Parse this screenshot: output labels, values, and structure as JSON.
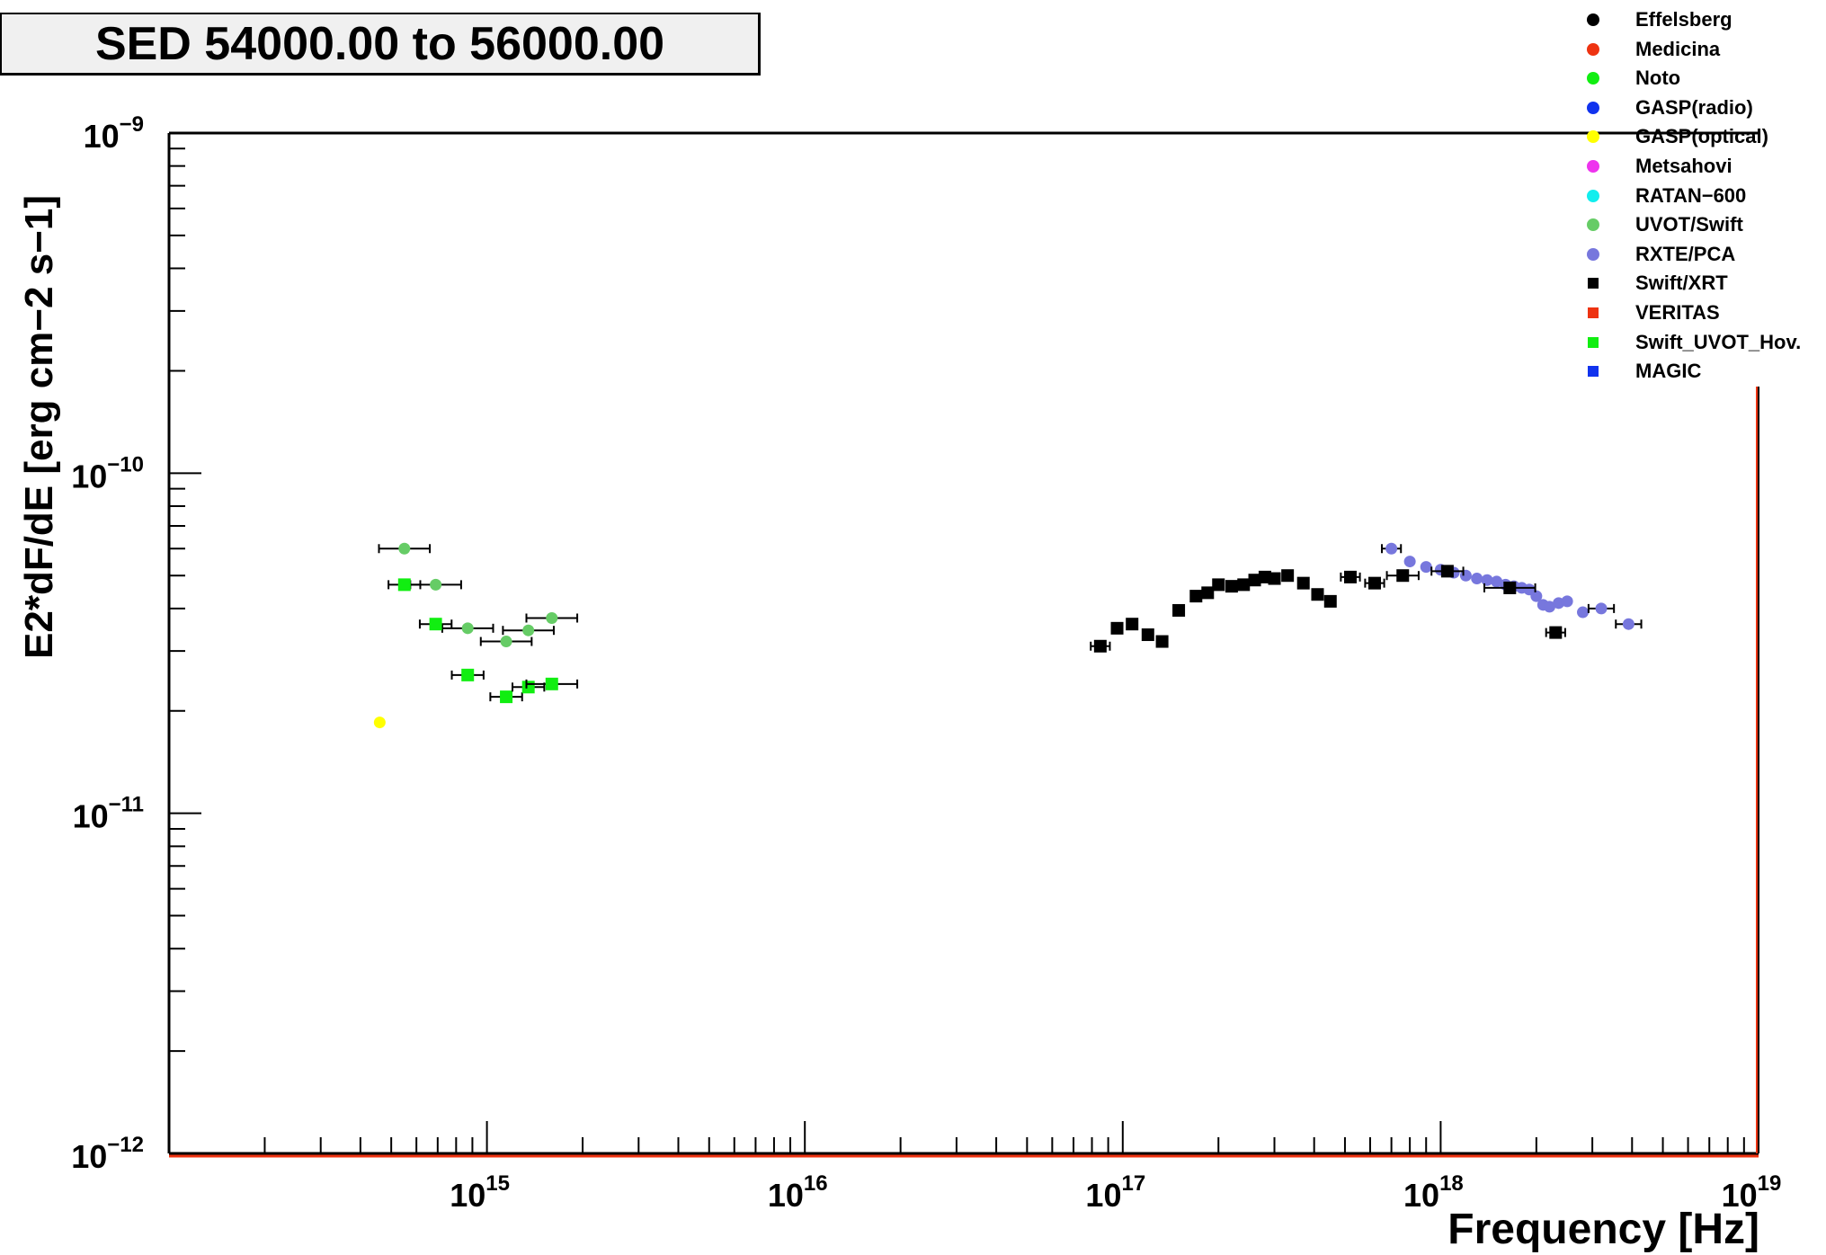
{
  "title": "SED 54000.00 to 56000.00",
  "chart_data": {
    "type": "scatter",
    "title": "SED 54000.00 to 56000.00",
    "xlabel": "Frequency [Hz]",
    "ylabel": "E2*dF/dE [erg cm−2 s−1]",
    "x_scale": "log",
    "y_scale": "log",
    "xlim": [
      100000000000000.0,
      1e+19
    ],
    "ylim": [
      1e-12,
      1e-09
    ],
    "grid": false,
    "legend_position": "top-right",
    "x_ticks": [
      {
        "value": 1000000000000000.0,
        "base": "10",
        "exp": "15"
      },
      {
        "value": 1e+16,
        "base": "10",
        "exp": "16"
      },
      {
        "value": 1e+17,
        "base": "10",
        "exp": "17"
      },
      {
        "value": 1e+18,
        "base": "10",
        "exp": "18"
      },
      {
        "value": 1e+19,
        "base": "10",
        "exp": "19"
      }
    ],
    "y_ticks": [
      {
        "value": 1e-09,
        "base": "10",
        "exp": "−9"
      },
      {
        "value": 1e-10,
        "base": "10",
        "exp": "−10"
      },
      {
        "value": 1e-11,
        "base": "10",
        "exp": "−11"
      },
      {
        "value": 1e-12,
        "base": "10",
        "exp": "−12"
      }
    ],
    "series": [
      {
        "name": "Effelsberg",
        "marker": "circle",
        "color": "#000000",
        "points": []
      },
      {
        "name": "Medicina",
        "marker": "circle",
        "color": "#ee3311",
        "points": []
      },
      {
        "name": "Noto",
        "marker": "circle",
        "color": "#11ee11",
        "points": []
      },
      {
        "name": "GASP(radio)",
        "marker": "circle",
        "color": "#1133ee",
        "points": []
      },
      {
        "name": "GASP(optical)",
        "marker": "circle",
        "color": "#ffff00",
        "points": [
          {
            "x": 460000000000000.0,
            "y": 1.85e-11
          }
        ]
      },
      {
        "name": "Metsahovi",
        "marker": "circle",
        "color": "#ee33ee",
        "points": []
      },
      {
        "name": "RATAN−600",
        "marker": "circle",
        "color": "#11eeee",
        "points": []
      },
      {
        "name": "UVOT/Swift",
        "marker": "circle",
        "color": "#66cc66",
        "points": [
          {
            "x": 550000000000000.0,
            "y": 6e-11,
            "xerr": 0.08
          },
          {
            "x": 690000000000000.0,
            "y": 4.7e-11,
            "xerr": 0.08
          },
          {
            "x": 870000000000000.0,
            "y": 3.5e-11,
            "xerr": 0.08
          },
          {
            "x": 1150000000000000.0,
            "y": 3.2e-11,
            "xerr": 0.08
          },
          {
            "x": 1350000000000000.0,
            "y": 3.45e-11,
            "xerr": 0.08
          },
          {
            "x": 1600000000000000.0,
            "y": 3.75e-11,
            "xerr": 0.08
          }
        ]
      },
      {
        "name": "RXTE/PCA",
        "marker": "circle",
        "color": "#7777dd",
        "points": [
          {
            "x": 7e+17,
            "y": 6e-11,
            "xerr": 0.03
          },
          {
            "x": 8e+17,
            "y": 5.5e-11
          },
          {
            "x": 9e+17,
            "y": 5.3e-11
          },
          {
            "x": 1e+18,
            "y": 5.2e-11
          },
          {
            "x": 1.1e+18,
            "y": 5.1e-11
          },
          {
            "x": 1.2e+18,
            "y": 5e-11
          },
          {
            "x": 1.3e+18,
            "y": 4.9e-11
          },
          {
            "x": 1.4e+18,
            "y": 4.85e-11
          },
          {
            "x": 1.5e+18,
            "y": 4.8e-11
          },
          {
            "x": 1.6e+18,
            "y": 4.7e-11
          },
          {
            "x": 1.7e+18,
            "y": 4.65e-11
          },
          {
            "x": 1.8e+18,
            "y": 4.6e-11
          },
          {
            "x": 1.9e+18,
            "y": 4.55e-11
          },
          {
            "x": 2e+18,
            "y": 4.35e-11
          },
          {
            "x": 2.1e+18,
            "y": 4.1e-11
          },
          {
            "x": 2.2e+18,
            "y": 4.05e-11
          },
          {
            "x": 2.35e+18,
            "y": 4.15e-11
          },
          {
            "x": 2.5e+18,
            "y": 4.2e-11
          },
          {
            "x": 2.8e+18,
            "y": 3.9e-11
          },
          {
            "x": 3.2e+18,
            "y": 4e-11,
            "xerr": 0.04
          },
          {
            "x": 3.9e+18,
            "y": 3.6e-11,
            "xerr": 0.04
          }
        ]
      },
      {
        "name": "Swift/XRT",
        "marker": "square",
        "color": "#000000",
        "points": [
          {
            "x": 8.5e+16,
            "y": 3.1e-11,
            "xerr": 0.03
          },
          {
            "x": 9.6e+16,
            "y": 3.5e-11
          },
          {
            "x": 1.07e+17,
            "y": 3.6e-11
          },
          {
            "x": 1.2e+17,
            "y": 3.35e-11
          },
          {
            "x": 1.33e+17,
            "y": 3.2e-11
          },
          {
            "x": 1.5e+17,
            "y": 3.95e-11
          },
          {
            "x": 1.7e+17,
            "y": 4.35e-11
          },
          {
            "x": 1.85e+17,
            "y": 4.45e-11
          },
          {
            "x": 2e+17,
            "y": 4.7e-11
          },
          {
            "x": 2.2e+17,
            "y": 4.65e-11
          },
          {
            "x": 2.4e+17,
            "y": 4.7e-11
          },
          {
            "x": 2.6e+17,
            "y": 4.85e-11
          },
          {
            "x": 2.8e+17,
            "y": 4.95e-11
          },
          {
            "x": 3e+17,
            "y": 4.9e-11
          },
          {
            "x": 3.3e+17,
            "y": 5e-11
          },
          {
            "x": 3.7e+17,
            "y": 4.75e-11
          },
          {
            "x": 4.1e+17,
            "y": 4.4e-11
          },
          {
            "x": 4.5e+17,
            "y": 4.2e-11
          },
          {
            "x": 5.2e+17,
            "y": 4.95e-11,
            "xerr": 0.03
          },
          {
            "x": 6.2e+17,
            "y": 4.75e-11,
            "xerr": 0.03
          },
          {
            "x": 7.6e+17,
            "y": 5e-11,
            "xerr": 0.05
          },
          {
            "x": 1.05e+18,
            "y": 5.15e-11,
            "xerr": 0.05
          },
          {
            "x": 1.65e+18,
            "y": 4.6e-11,
            "xerr": 0.08
          },
          {
            "x": 2.3e+18,
            "y": 3.4e-11,
            "xerr": 0.03
          }
        ]
      },
      {
        "name": "VERITAS",
        "marker": "square",
        "color": "#ee3311",
        "points": []
      },
      {
        "name": "Swift_UVOT_Hov.",
        "marker": "square",
        "color": "#11ee11",
        "points": [
          {
            "x": 550000000000000.0,
            "y": 4.7e-11,
            "xerr": 0.05
          },
          {
            "x": 690000000000000.0,
            "y": 3.6e-11,
            "xerr": 0.05
          },
          {
            "x": 870000000000000.0,
            "y": 2.55e-11,
            "xerr": 0.05
          },
          {
            "x": 1150000000000000.0,
            "y": 2.2e-11,
            "xerr": 0.05
          },
          {
            "x": 1350000000000000.0,
            "y": 2.35e-11,
            "xerr": 0.05
          },
          {
            "x": 1600000000000000.0,
            "y": 2.4e-11,
            "xerr": 0.08
          }
        ]
      },
      {
        "name": "MAGIC",
        "marker": "square",
        "color": "#1133ee",
        "points": []
      }
    ]
  }
}
